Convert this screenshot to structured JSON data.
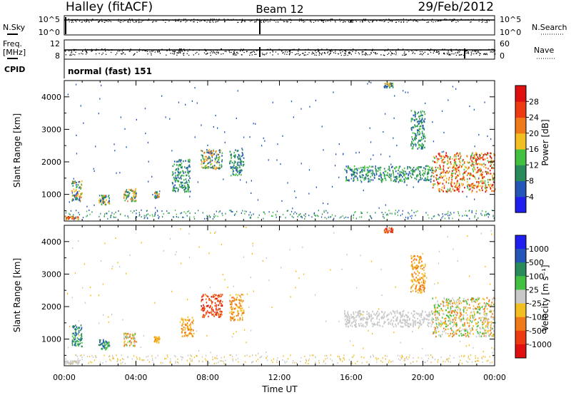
{
  "header": {
    "station": "Halley (fitACF)",
    "beam": "Beam 12",
    "date": "29/Feb/2012"
  },
  "noise_panel": {
    "left_label": "N.Sky",
    "right_label": "N.Search",
    "left_ticks": [
      "10^5",
      "10^0"
    ],
    "right_ticks": [
      "10^5",
      "10^0"
    ]
  },
  "freq_panel": {
    "left_label": "Freq.",
    "left_unit": "[MHz]",
    "right_label": "Nave",
    "left_ticks": [
      "12",
      "8"
    ],
    "right_ticks": [
      "60",
      "0"
    ]
  },
  "cpid": {
    "label": "CPID",
    "mode": "normal (fast) 151"
  },
  "x_axis": {
    "title": "Time UT",
    "ticks": [
      "00:00",
      "04:00",
      "08:00",
      "12:00",
      "16:00",
      "20:00",
      "00:00"
    ]
  },
  "chart_data": [
    {
      "type": "heatmap",
      "panel": "power",
      "x_unit": "hours UT",
      "xlim": [
        0,
        24
      ],
      "ylabel": "Slant Range [km]",
      "ylim": [
        180,
        4500
      ],
      "yticks": [
        1000,
        2000,
        3000,
        4000
      ],
      "colorbar": {
        "label": "Power [dB]",
        "ticks": [
          "4",
          "8",
          "12",
          "16",
          "20",
          "24",
          "28"
        ],
        "range": [
          0,
          32
        ],
        "colors": [
          "#1f1ff0",
          "#2456b8",
          "#2a8a5a",
          "#43c042",
          "#f2bf20",
          "#f07a1a",
          "#ee3a12",
          "#e01010"
        ]
      },
      "clusters": [
        {
          "x": [
            0.0,
            0.8
          ],
          "y": [
            250,
            350
          ],
          "value": "high"
        },
        {
          "x": [
            0.4,
            1.0
          ],
          "y": [
            800,
            1450
          ],
          "value": "medium"
        },
        {
          "x": [
            1.9,
            2.5
          ],
          "y": [
            700,
            1000
          ],
          "value": "medium"
        },
        {
          "x": [
            3.3,
            4.0
          ],
          "y": [
            800,
            1200
          ],
          "value": "medium"
        },
        {
          "x": [
            5.0,
            5.3
          ],
          "y": [
            900,
            1100
          ],
          "value": "medium"
        },
        {
          "x": [
            6.0,
            7.0
          ],
          "y": [
            1100,
            2100
          ],
          "value": "low"
        },
        {
          "x": [
            7.6,
            8.8
          ],
          "y": [
            1800,
            2400
          ],
          "value": "medium"
        },
        {
          "x": [
            9.2,
            10.0
          ],
          "y": [
            1600,
            2400
          ],
          "value": "low"
        },
        {
          "x": [
            15.6,
            20.5
          ],
          "y": [
            1400,
            1900
          ],
          "value": "low"
        },
        {
          "x": [
            17.8,
            18.3
          ],
          "y": [
            4300,
            4450
          ],
          "value": "medium"
        },
        {
          "x": [
            19.3,
            20.1
          ],
          "y": [
            2400,
            3600
          ],
          "value": "low"
        },
        {
          "x": [
            20.5,
            24.0
          ],
          "y": [
            1100,
            2300
          ],
          "value": "high"
        }
      ]
    },
    {
      "type": "heatmap",
      "panel": "velocity",
      "x_unit": "hours UT",
      "xlim": [
        0,
        24
      ],
      "ylabel": "Slant Range [km]",
      "ylim": [
        180,
        4500
      ],
      "yticks": [
        1000,
        2000,
        3000,
        4000
      ],
      "colorbar": {
        "label": "Velocity [m s⁻¹]",
        "ticks": [
          "1000",
          "500",
          "100",
          "25",
          "-25",
          "-100",
          "-500",
          "-1000"
        ],
        "colors": [
          "#1f1ff0",
          "#2456b8",
          "#2a8a5a",
          "#43c042",
          "#c8c8c8",
          "#f2bf20",
          "#f07a1a",
          "#ee3a12",
          "#e01010"
        ]
      },
      "clusters": [
        {
          "x": [
            0.0,
            0.8
          ],
          "y": [
            250,
            350
          ],
          "value": "ground"
        },
        {
          "x": [
            0.4,
            1.0
          ],
          "y": [
            800,
            1450
          ],
          "value": "positive"
        },
        {
          "x": [
            1.9,
            2.5
          ],
          "y": [
            700,
            1000
          ],
          "value": "positive"
        },
        {
          "x": [
            3.3,
            4.0
          ],
          "y": [
            800,
            1200
          ],
          "value": "mixed"
        },
        {
          "x": [
            5.0,
            5.3
          ],
          "y": [
            900,
            1100
          ],
          "value": "negative"
        },
        {
          "x": [
            6.5,
            7.2
          ],
          "y": [
            1100,
            1700
          ],
          "value": "negative"
        },
        {
          "x": [
            7.6,
            8.8
          ],
          "y": [
            1700,
            2400
          ],
          "value": "strong-negative"
        },
        {
          "x": [
            9.2,
            10.0
          ],
          "y": [
            1600,
            2400
          ],
          "value": "negative"
        },
        {
          "x": [
            15.6,
            20.5
          ],
          "y": [
            1400,
            1900
          ],
          "value": "ground"
        },
        {
          "x": [
            17.8,
            18.3
          ],
          "y": [
            4300,
            4450
          ],
          "value": "strong-negative"
        },
        {
          "x": [
            19.3,
            20.1
          ],
          "y": [
            2400,
            3600
          ],
          "value": "negative"
        },
        {
          "x": [
            20.5,
            24.0
          ],
          "y": [
            1100,
            2300
          ],
          "value": "mixed"
        }
      ]
    }
  ]
}
